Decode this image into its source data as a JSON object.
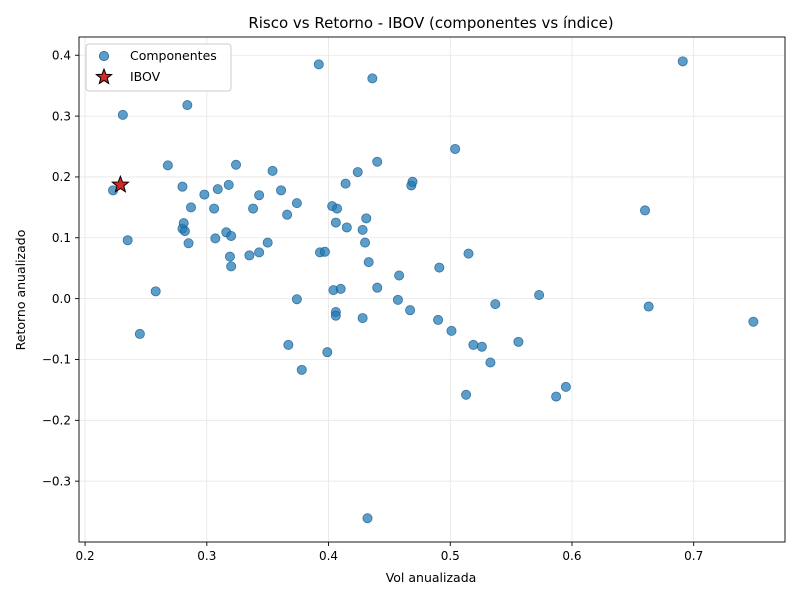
{
  "chart_data": {
    "type": "scatter",
    "title": "Risco vs Retorno - IBOV (componentes vs índice)",
    "xlabel": "Vol anualizada",
    "ylabel": "Retorno anualizado",
    "xlim": [
      0.195,
      0.775
    ],
    "ylim": [
      -0.4,
      0.43
    ],
    "xticks": [
      0.2,
      0.3,
      0.4,
      0.5,
      0.6,
      0.7
    ],
    "xtick_labels": [
      "0.2",
      "0.3",
      "0.4",
      "0.5",
      "0.6",
      "0.7"
    ],
    "yticks": [
      -0.3,
      -0.2,
      -0.1,
      0.0,
      0.1,
      0.2,
      0.3,
      0.4
    ],
    "ytick_labels": [
      "−0.3",
      "−0.2",
      "−0.1",
      "0.0",
      "0.1",
      "0.2",
      "0.3",
      "0.4"
    ],
    "grid": true,
    "legend_position": "top-left",
    "colors": {
      "components": "#1f77b4",
      "components_edge": "#1a5f8f",
      "ibov_fill": "#d62728",
      "ibov_edge": "#000000"
    },
    "series": [
      {
        "name": "Componentes",
        "marker": "circle",
        "points": [
          [
            0.223,
            0.178
          ],
          [
            0.231,
            0.302
          ],
          [
            0.235,
            0.096
          ],
          [
            0.245,
            -0.058
          ],
          [
            0.258,
            0.012
          ],
          [
            0.268,
            0.219
          ],
          [
            0.28,
            0.184
          ],
          [
            0.28,
            0.115
          ],
          [
            0.281,
            0.124
          ],
          [
            0.282,
            0.111
          ],
          [
            0.284,
            0.318
          ],
          [
            0.285,
            0.091
          ],
          [
            0.287,
            0.15
          ],
          [
            0.298,
            0.171
          ],
          [
            0.306,
            0.148
          ],
          [
            0.307,
            0.099
          ],
          [
            0.309,
            0.18
          ],
          [
            0.316,
            0.109
          ],
          [
            0.318,
            0.187
          ],
          [
            0.319,
            0.069
          ],
          [
            0.32,
            0.103
          ],
          [
            0.32,
            0.053
          ],
          [
            0.324,
            0.22
          ],
          [
            0.335,
            0.071
          ],
          [
            0.338,
            0.148
          ],
          [
            0.343,
            0.17
          ],
          [
            0.343,
            0.076
          ],
          [
            0.35,
            0.092
          ],
          [
            0.354,
            0.21
          ],
          [
            0.361,
            0.178
          ],
          [
            0.366,
            0.138
          ],
          [
            0.367,
            -0.076
          ],
          [
            0.374,
            0.157
          ],
          [
            0.374,
            -0.001
          ],
          [
            0.378,
            -0.117
          ],
          [
            0.392,
            0.385
          ],
          [
            0.393,
            0.076
          ],
          [
            0.397,
            0.077
          ],
          [
            0.399,
            -0.088
          ],
          [
            0.403,
            0.152
          ],
          [
            0.404,
            0.014
          ],
          [
            0.406,
            0.125
          ],
          [
            0.406,
            -0.022
          ],
          [
            0.406,
            -0.028
          ],
          [
            0.407,
            0.148
          ],
          [
            0.41,
            0.016
          ],
          [
            0.414,
            0.189
          ],
          [
            0.415,
            0.117
          ],
          [
            0.424,
            0.208
          ],
          [
            0.428,
            0.113
          ],
          [
            0.428,
            -0.032
          ],
          [
            0.43,
            0.092
          ],
          [
            0.431,
            0.132
          ],
          [
            0.432,
            -0.361
          ],
          [
            0.433,
            0.06
          ],
          [
            0.436,
            0.362
          ],
          [
            0.44,
            0.225
          ],
          [
            0.44,
            0.018
          ],
          [
            0.457,
            -0.002
          ],
          [
            0.458,
            0.038
          ],
          [
            0.467,
            -0.019
          ],
          [
            0.468,
            0.186
          ],
          [
            0.469,
            0.192
          ],
          [
            0.49,
            -0.035
          ],
          [
            0.491,
            0.051
          ],
          [
            0.501,
            -0.053
          ],
          [
            0.504,
            0.246
          ],
          [
            0.513,
            -0.158
          ],
          [
            0.515,
            0.074
          ],
          [
            0.519,
            -0.076
          ],
          [
            0.526,
            -0.079
          ],
          [
            0.533,
            -0.105
          ],
          [
            0.537,
            -0.009
          ],
          [
            0.556,
            -0.071
          ],
          [
            0.573,
            0.006
          ],
          [
            0.587,
            -0.161
          ],
          [
            0.595,
            -0.145
          ],
          [
            0.66,
            0.145
          ],
          [
            0.663,
            -0.013
          ],
          [
            0.691,
            0.39
          ],
          [
            0.749,
            -0.038
          ]
        ]
      },
      {
        "name": "IBOV",
        "marker": "star",
        "points": [
          [
            0.229,
            0.187
          ]
        ]
      }
    ]
  }
}
